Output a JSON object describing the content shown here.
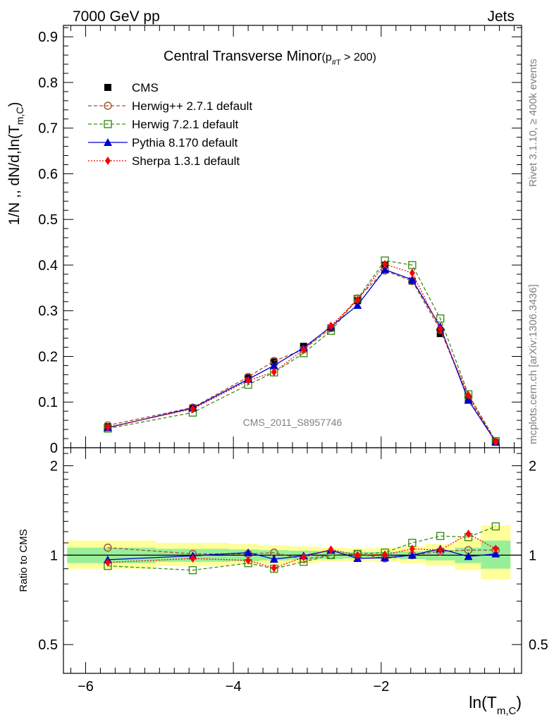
{
  "header": {
    "left": "7000 GeV pp",
    "right": "Jets",
    "watermark": "CMS_2011_S8957746",
    "side_top": "Rivet 3.1.10, ≥ 400k events",
    "side_bottom": "mcplots.cern.ch [arXiv:1306.3436]"
  },
  "chart_data": {
    "type": "line",
    "title_main": "Central Transverse Minor",
    "title_sub_prefix": "(p",
    "title_sub_index": "#T",
    "title_sub_suffix": " > 200)",
    "xlabel_main": "ln(T",
    "xlabel_sub": "m,C",
    "xlabel_close": ")",
    "ylabel_main": "1/N ,, dN/d,ln(T",
    "ylabel_sub": "m,C",
    "ylabel_close": ")",
    "ratio_ylabel": "Ratio to CMS",
    "x": [
      -5.7,
      -4.55,
      -3.8,
      -3.45,
      -3.05,
      -2.68,
      -2.32,
      -1.95,
      -1.58,
      -1.2,
      -0.82,
      -0.45
    ],
    "xlim": [
      -6.3,
      -0.1
    ],
    "x_ticks": [
      -6,
      -4,
      -2
    ],
    "x_tick_labels": [
      "−6",
      "−4",
      "−2"
    ],
    "ylim": [
      0,
      0.925
    ],
    "y_ticks": [
      0,
      0.1,
      0.2,
      0.3,
      0.4,
      0.5,
      0.6,
      0.7,
      0.8,
      0.9
    ],
    "y_tick_labels": [
      "0",
      "0.1",
      "0.2",
      "0.3",
      "0.4",
      "0.5",
      "0.6",
      "0.7",
      "0.8",
      "0.9"
    ],
    "ratio_ylim": [
      0.4,
      2.3
    ],
    "ratio_y_ticks": [
      0.5,
      1,
      2
    ],
    "ratio_y_tick_labels": [
      "0.5",
      "1",
      "2"
    ],
    "band_edges": [
      -6.25,
      -5.05,
      -4.05,
      -3.65,
      -3.25,
      -2.85,
      -2.5,
      -2.1,
      -1.75,
      -1.4,
      -1.0,
      -0.65,
      -0.25
    ],
    "band_green_lo": [
      0.94,
      0.95,
      0.955,
      0.96,
      0.965,
      0.97,
      0.975,
      0.975,
      0.97,
      0.96,
      0.94,
      0.9
    ],
    "band_green_hi": [
      1.06,
      1.05,
      1.045,
      1.04,
      1.035,
      1.03,
      1.025,
      1.025,
      1.03,
      1.04,
      1.06,
      1.12
    ],
    "band_yellow_lo": [
      0.9,
      0.92,
      0.93,
      0.93,
      0.94,
      0.95,
      0.955,
      0.95,
      0.94,
      0.92,
      0.89,
      0.83
    ],
    "band_yellow_hi": [
      1.12,
      1.1,
      1.09,
      1.08,
      1.07,
      1.06,
      1.055,
      1.06,
      1.07,
      1.09,
      1.14,
      1.26
    ],
    "series": [
      {
        "name": "CMS",
        "color": "#000000",
        "marker": "square-filled",
        "line": "none",
        "values": [
          0.046,
          0.087,
          0.153,
          0.188,
          0.222,
          0.262,
          0.322,
          0.4,
          0.365,
          0.25,
          0.105,
          0.012
        ],
        "ratio": [
          1,
          1,
          1,
          1,
          1,
          1,
          1,
          1,
          1,
          1,
          1,
          1
        ]
      },
      {
        "name": "Herwig++ 2.7.1 default",
        "color": "#a0522d",
        "marker": "circle-open",
        "line": "dashed",
        "values": [
          0.049,
          0.088,
          0.155,
          0.19,
          0.215,
          0.262,
          0.327,
          0.388,
          0.365,
          0.258,
          0.11,
          0.0125
        ],
        "ratio": [
          1.06,
          1.01,
          1.01,
          1.02,
          0.97,
          1.0,
          1.01,
          0.975,
          1.0,
          1.03,
          1.04,
          1.04
        ]
      },
      {
        "name": "Herwig 7.2.1 default",
        "color": "#3d8c1a",
        "marker": "square-open",
        "line": "dashed",
        "values": [
          0.042,
          0.077,
          0.138,
          0.165,
          0.207,
          0.256,
          0.326,
          0.41,
          0.4,
          0.283,
          0.117,
          0.0145
        ],
        "ratio": [
          0.92,
          0.89,
          0.94,
          0.9,
          0.95,
          1.0,
          1.01,
          1.02,
          1.1,
          1.16,
          1.15,
          1.25
        ]
      },
      {
        "name": "Pythia 8.170 default",
        "color": "#0000cc",
        "marker": "triangle-filled",
        "line": "solid",
        "values": [
          0.044,
          0.087,
          0.15,
          0.18,
          0.219,
          0.265,
          0.312,
          0.39,
          0.368,
          0.265,
          0.104,
          0.013
        ],
        "ratio": [
          0.965,
          0.995,
          1.02,
          0.97,
          0.995,
          1.04,
          0.975,
          0.98,
          1.0,
          1.05,
          0.99,
          1.01
        ]
      },
      {
        "name": "Sherpa 1.3.1 default",
        "color": "#ff0000",
        "marker": "diamond-filled",
        "line": "dotted",
        "values": [
          0.045,
          0.085,
          0.147,
          0.166,
          0.215,
          0.267,
          0.324,
          0.402,
          0.383,
          0.26,
          0.115,
          0.013
        ],
        "ratio": [
          0.945,
          0.975,
          0.96,
          0.905,
          0.985,
          1.045,
          1.0,
          1.005,
          1.05,
          1.04,
          1.18,
          1.05
        ]
      }
    ]
  }
}
